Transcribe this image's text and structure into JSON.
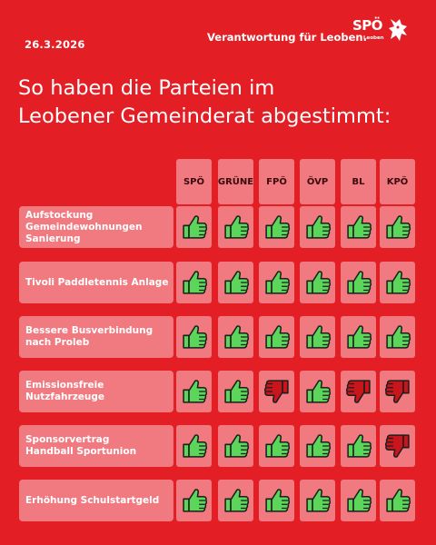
{
  "date": "26.3.2026",
  "tagline": "Verantwortung für Leoben.",
  "logo": {
    "text": "SPÖ",
    "subtext": "Leoben",
    "icon": "panther-icon"
  },
  "headline": [
    "So haben die Parteien im",
    "Leobener Gemeinderat abgestimmt:"
  ],
  "colors": {
    "background": "#e31e24",
    "tile": "#f07a80",
    "yes": "#5bd65b",
    "no": "#c8161c"
  },
  "parties": [
    "SPÖ",
    "GRÜNE",
    "FPÖ",
    "ÖVP",
    "BL",
    "KPÖ"
  ],
  "votes": [
    {
      "lines": [
        "Aufstockung",
        "Gemeindewohnungen",
        "Sanierung"
      ],
      "results": [
        "yes",
        "yes",
        "yes",
        "yes",
        "yes",
        "yes"
      ]
    },
    {
      "lines": [
        "Tivoli Paddletennis Anlage"
      ],
      "results": [
        "yes",
        "yes",
        "yes",
        "yes",
        "yes",
        "yes"
      ]
    },
    {
      "lines": [
        "Bessere Busverbindung",
        "nach Proleb"
      ],
      "results": [
        "yes",
        "yes",
        "yes",
        "yes",
        "yes",
        "yes"
      ]
    },
    {
      "lines": [
        "Emissionsfreie",
        "Nutzfahrzeuge"
      ],
      "results": [
        "yes",
        "yes",
        "no",
        "yes",
        "no",
        "no"
      ]
    },
    {
      "lines": [
        "Sponsorvertrag",
        "Handball Sportunion"
      ],
      "results": [
        "yes",
        "yes",
        "yes",
        "yes",
        "yes",
        "no"
      ]
    },
    {
      "lines": [
        "Erhöhung Schulstartgeld"
      ],
      "results": [
        "yes",
        "yes",
        "yes",
        "yes",
        "yes",
        "yes"
      ]
    }
  ]
}
